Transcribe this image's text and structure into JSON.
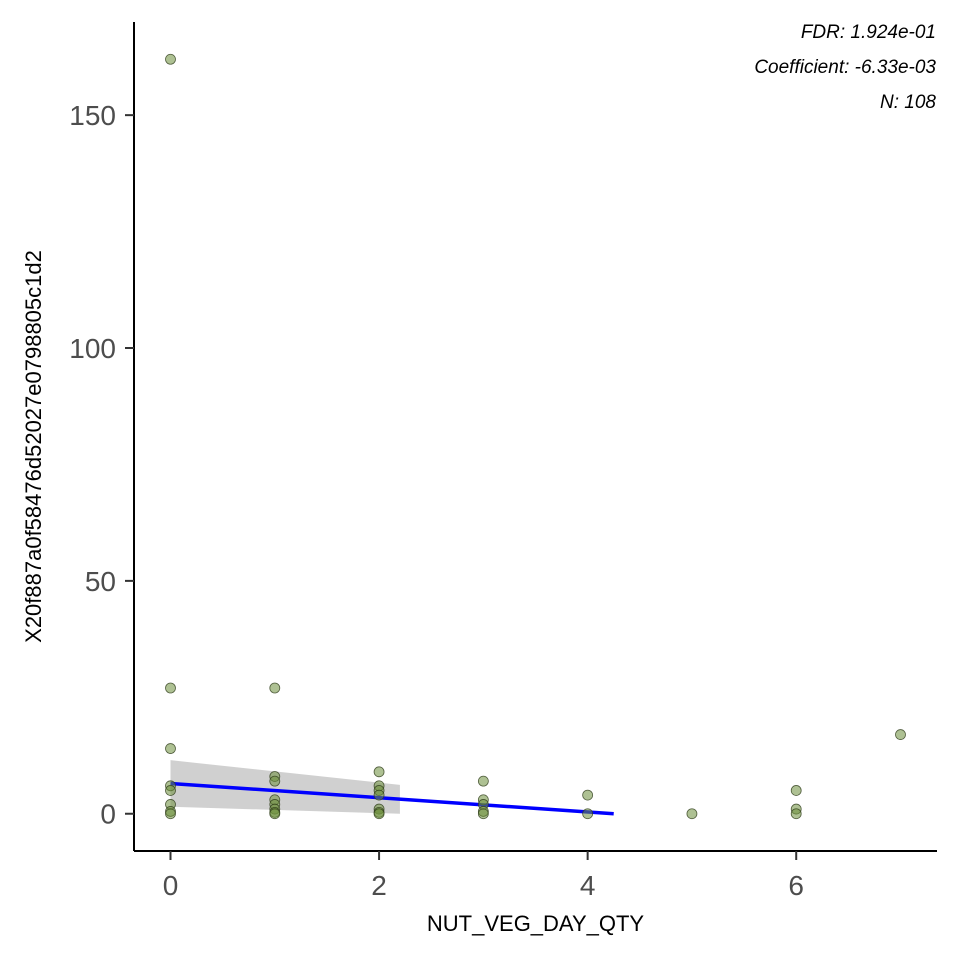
{
  "chart_data": {
    "type": "scatter",
    "title": "",
    "xlabel": "NUT_VEG_DAY_QTY",
    "ylabel": "X20f887a0f58476d52027e0798805c1d2",
    "xlim": [
      -0.35,
      7.35
    ],
    "ylim": [
      -8,
      170
    ],
    "x_ticks": [
      0,
      2,
      4,
      6
    ],
    "y_ticks": [
      0,
      50,
      100,
      150
    ],
    "grid": false,
    "annotations": [
      "FDR: 1.924e-01",
      "Coefficient: -6.33e-03",
      "N: 108"
    ],
    "point_color": "#6b8e3a",
    "line_color": "#0000ff",
    "band_color": "#c8c8c8",
    "points": [
      {
        "x": 0,
        "y": 162
      },
      {
        "x": 0,
        "y": 27
      },
      {
        "x": 0,
        "y": 14
      },
      {
        "x": 0,
        "y": 6
      },
      {
        "x": 0,
        "y": 5
      },
      {
        "x": 0,
        "y": 2
      },
      {
        "x": 0,
        "y": 0.5
      },
      {
        "x": 0,
        "y": 0
      },
      {
        "x": 1,
        "y": 27
      },
      {
        "x": 1,
        "y": 8
      },
      {
        "x": 1,
        "y": 7
      },
      {
        "x": 1,
        "y": 3
      },
      {
        "x": 1,
        "y": 2
      },
      {
        "x": 1,
        "y": 1
      },
      {
        "x": 1,
        "y": 0.3
      },
      {
        "x": 1,
        "y": 0
      },
      {
        "x": 2,
        "y": 9
      },
      {
        "x": 2,
        "y": 6
      },
      {
        "x": 2,
        "y": 5
      },
      {
        "x": 2,
        "y": 4
      },
      {
        "x": 2,
        "y": 1
      },
      {
        "x": 2,
        "y": 0.3
      },
      {
        "x": 2,
        "y": 0
      },
      {
        "x": 3,
        "y": 7
      },
      {
        "x": 3,
        "y": 3
      },
      {
        "x": 3,
        "y": 2
      },
      {
        "x": 3,
        "y": 0.5
      },
      {
        "x": 3,
        "y": 0
      },
      {
        "x": 4,
        "y": 4
      },
      {
        "x": 4,
        "y": 0
      },
      {
        "x": 5,
        "y": 0
      },
      {
        "x": 6,
        "y": 5
      },
      {
        "x": 6,
        "y": 1
      },
      {
        "x": 6,
        "y": 0
      },
      {
        "x": 7,
        "y": 17
      }
    ],
    "fit_line": {
      "x": [
        0,
        4.25
      ],
      "y": [
        6.5,
        0
      ]
    },
    "confidence_band": {
      "x": [
        0,
        2.2
      ],
      "upper": [
        11.5,
        6.2
      ],
      "lower": [
        1.5,
        0
      ]
    }
  }
}
